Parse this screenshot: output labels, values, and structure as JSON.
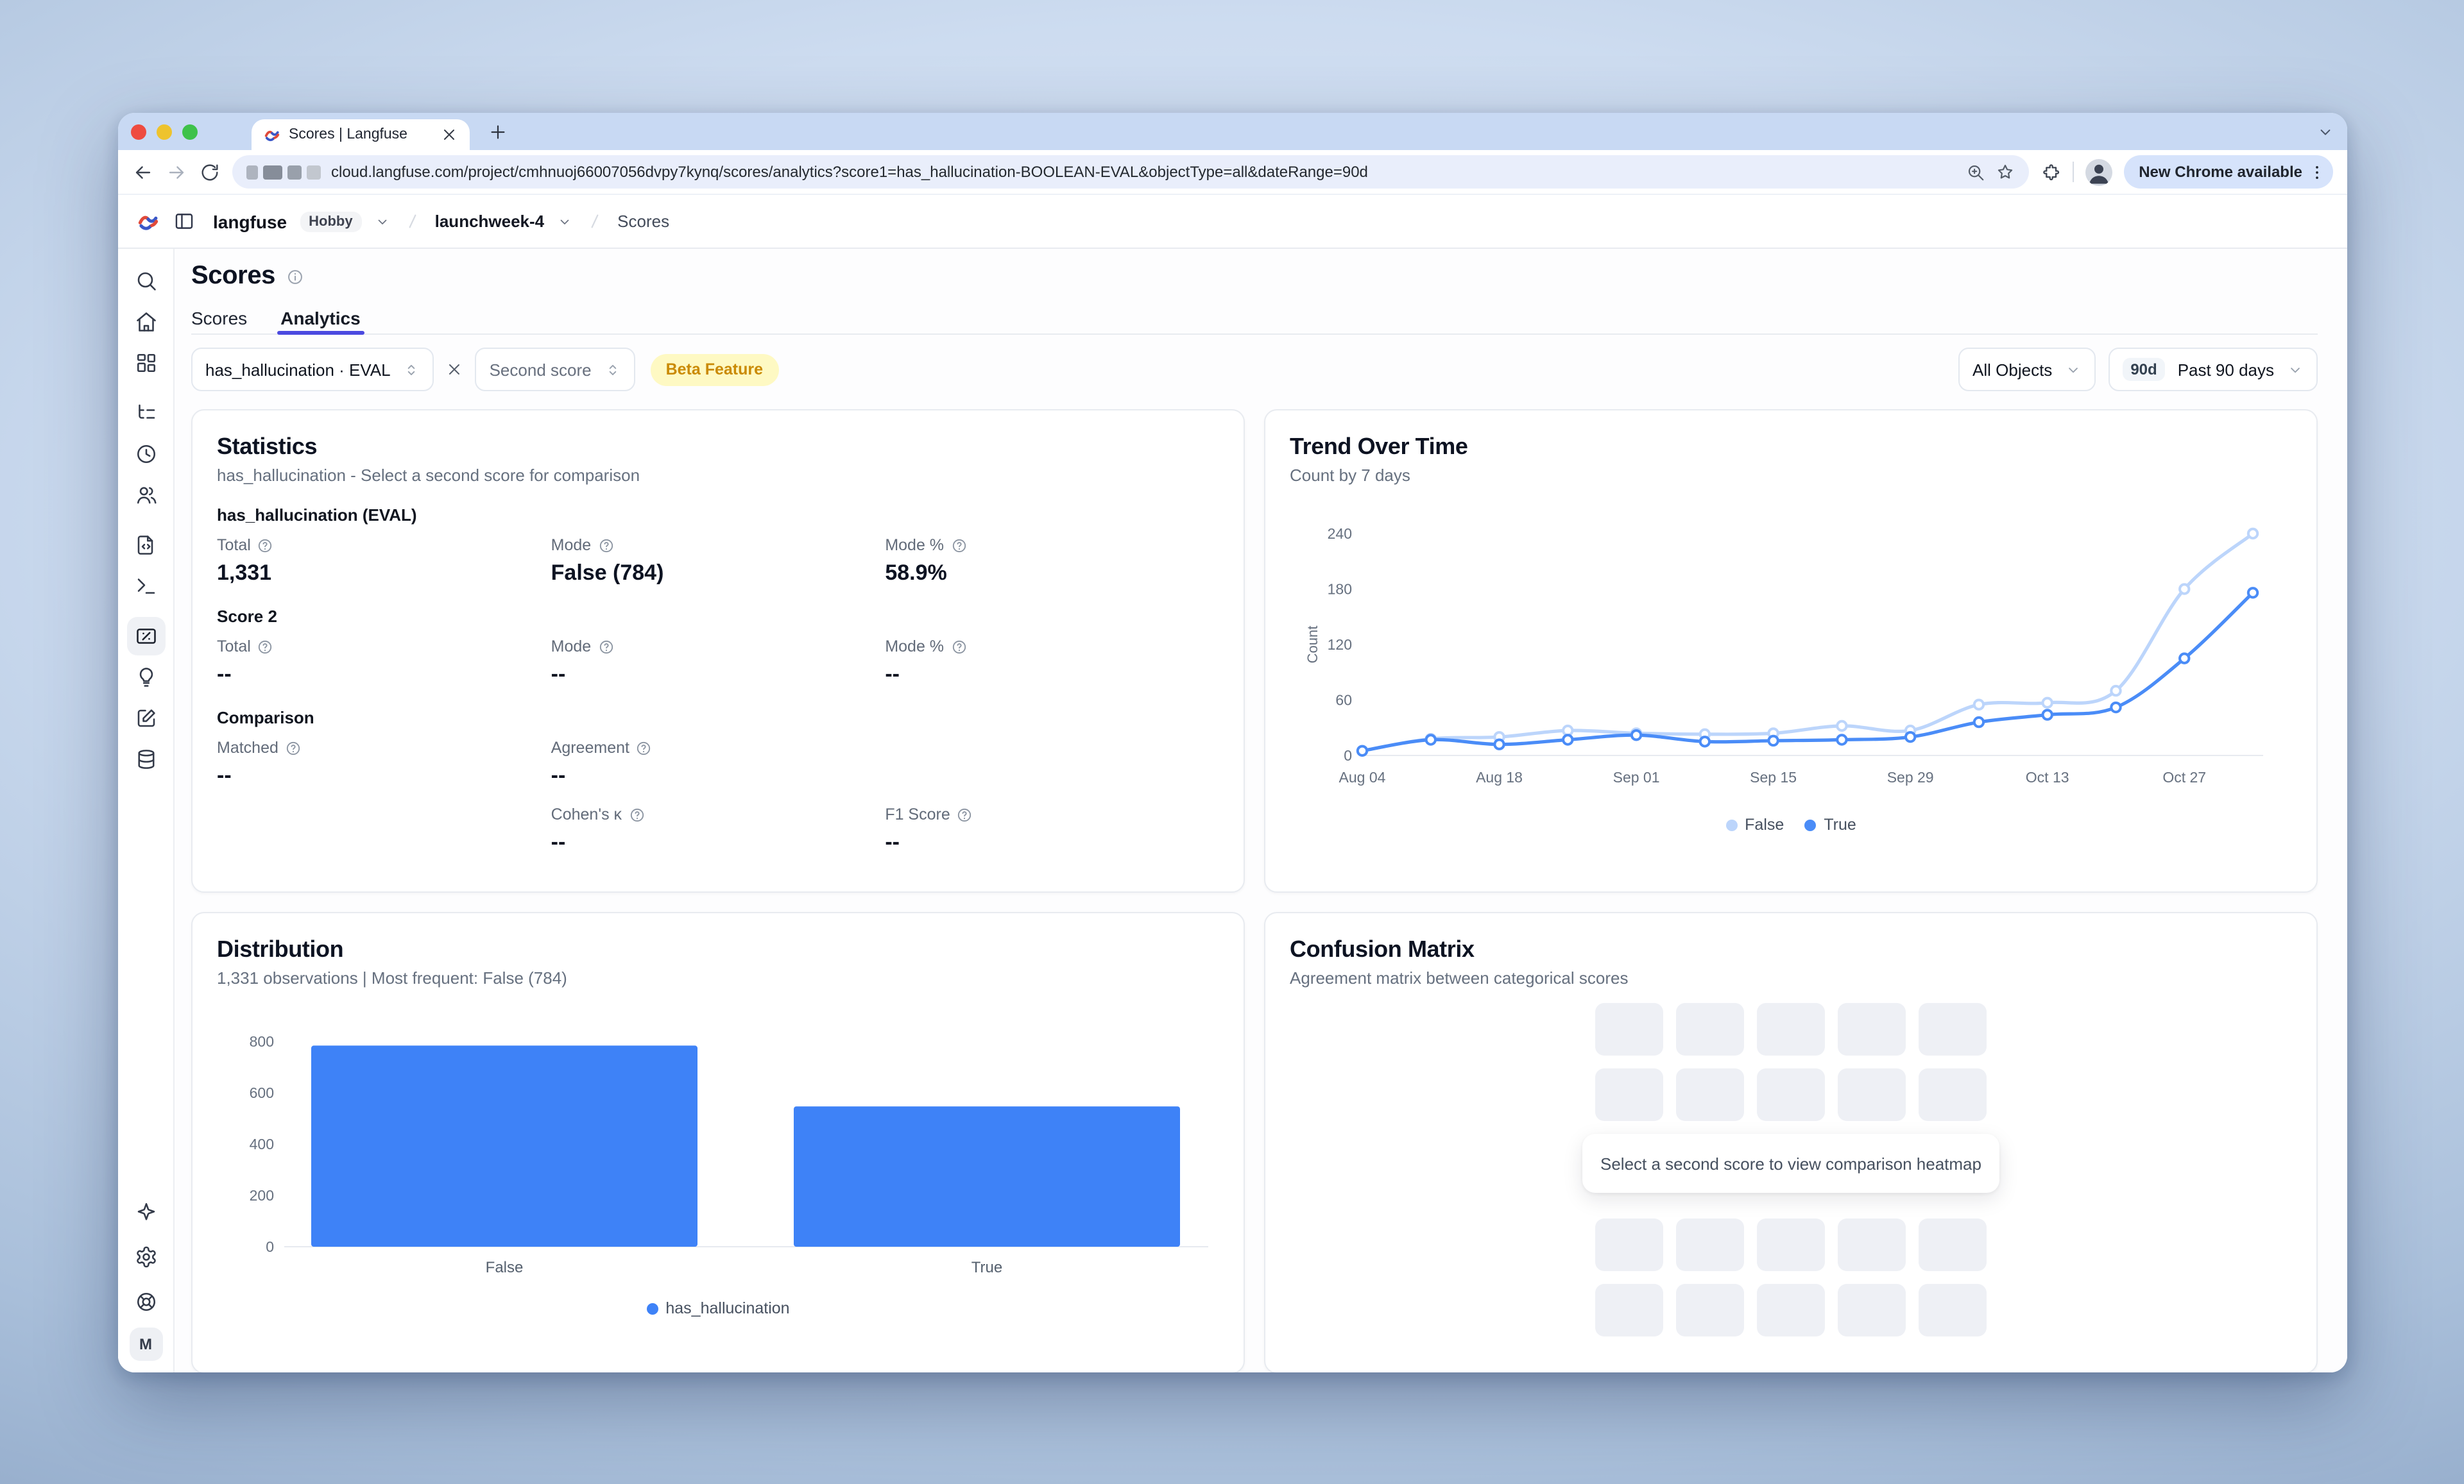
{
  "colors": {
    "accent_indigo": "#4b4ae0",
    "bar_blue": "#3e82f7",
    "true_line": "#4a8cf7",
    "false_line": "#bcd5fb",
    "beta_bg": "#fef9c3",
    "beta_text": "#ca8a04",
    "traffic_lights": [
      "#ee4b40",
      "#eec32d",
      "#3ec24a"
    ]
  },
  "browser": {
    "tab_title": "Scores | Langfuse",
    "url": "cloud.langfuse.com/project/cmhnuoj66007056dvpy7kynq/scores/analytics?score1=has_hallucination-BOOLEAN-EVAL&objectType=all&dateRange=90d",
    "update_pill": "New Chrome available"
  },
  "breadcrumb": {
    "org": "langfuse",
    "plan_badge": "Hobby",
    "project": "launchweek-4",
    "page": "Scores"
  },
  "sidebar": {
    "groups": [
      [
        "search",
        "home",
        "dashboards"
      ],
      [
        "tracing",
        "sessions",
        "users"
      ],
      [
        "prompts",
        "playground"
      ],
      [
        "scores",
        "evaluators",
        "annotation",
        "datasets"
      ]
    ],
    "active": "scores",
    "bottom": [
      "ask-ai",
      "settings",
      "support"
    ],
    "avatar": "M"
  },
  "page": {
    "title": "Scores",
    "tabs": [
      {
        "label": "Scores",
        "active": false
      },
      {
        "label": "Analytics",
        "active": true
      }
    ]
  },
  "filters": {
    "score1_value": "has_hallucination · EVAL",
    "score2_placeholder": "Second score",
    "beta_badge": "Beta Feature",
    "object_filter": "All Objects",
    "range_badge": "90d",
    "range_label": "Past 90 days"
  },
  "statistics": {
    "title": "Statistics",
    "subtitle": "has_hallucination - Select a second score for comparison",
    "sections": [
      {
        "heading": "has_hallucination (EVAL)",
        "rows": [
          [
            {
              "label": "Total",
              "value": "1,331"
            },
            {
              "label": "Mode",
              "value": "False (784)"
            },
            {
              "label": "Mode %",
              "value": "58.9%"
            }
          ]
        ]
      },
      {
        "heading": "Score 2",
        "rows": [
          [
            {
              "label": "Total",
              "value": "--"
            },
            {
              "label": "Mode",
              "value": "--"
            },
            {
              "label": "Mode %",
              "value": "--"
            }
          ]
        ]
      },
      {
        "heading": "Comparison",
        "rows": [
          [
            {
              "label": "Matched",
              "value": "--"
            },
            {
              "label": "Agreement",
              "value": "--"
            },
            null
          ],
          [
            null,
            {
              "label": "Cohen's κ",
              "value": "--"
            },
            {
              "label": "F1 Score",
              "value": "--"
            }
          ]
        ]
      }
    ]
  },
  "chart_data": [
    {
      "id": "trend",
      "type": "line",
      "title": "Trend Over Time",
      "subtitle": "Count by 7 days",
      "ylabel": "Count",
      "ylim": [
        0,
        240
      ],
      "yticks": [
        0,
        60,
        120,
        180,
        240
      ],
      "x": [
        "Aug 04",
        "Aug 11",
        "Aug 18",
        "Aug 25",
        "Sep 01",
        "Sep 08",
        "Sep 15",
        "Sep 22",
        "Sep 29",
        "Oct 06",
        "Oct 13",
        "Oct 20",
        "Oct 27",
        "Nov 03"
      ],
      "xtick_every": 2,
      "grid": false,
      "legend_position": "bottom",
      "series": [
        {
          "name": "False",
          "color": "#bcd5fb",
          "values": [
            5,
            18,
            20,
            27,
            24,
            23,
            24,
            32,
            27,
            55,
            57,
            70,
            180,
            240
          ]
        },
        {
          "name": "True",
          "color": "#4a8cf7",
          "values": [
            5,
            17,
            12,
            17,
            22,
            15,
            16,
            17,
            20,
            36,
            44,
            52,
            105,
            176
          ]
        }
      ]
    },
    {
      "id": "distribution",
      "type": "bar",
      "title": "Distribution",
      "subtitle": "1,331 observations | Most frequent: False (784)",
      "categories": [
        "False",
        "True"
      ],
      "values": [
        784,
        547
      ],
      "ylim": [
        0,
        800
      ],
      "yticks": [
        0,
        200,
        400,
        600,
        800
      ],
      "grid": false,
      "color": "#3e82f7",
      "legend": [
        "has_hallucination"
      ],
      "legend_position": "bottom"
    }
  ],
  "confusion": {
    "title": "Confusion Matrix",
    "subtitle": "Agreement matrix between categorical scores",
    "overlay": "Select a second score to view comparison heatmap",
    "grid": {
      "rows": 4,
      "cols": 5
    }
  }
}
